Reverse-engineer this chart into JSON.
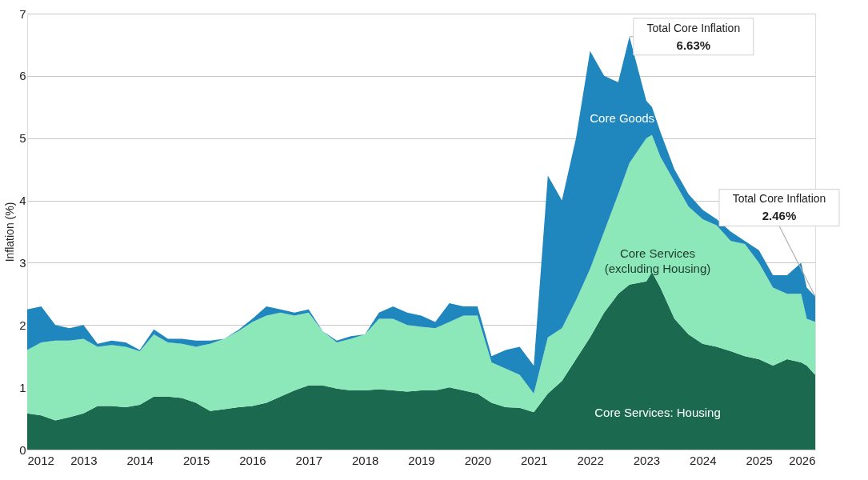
{
  "chart_data": {
    "type": "area",
    "stacked": true,
    "ylabel": "Inflation (%)",
    "x": [
      2012.0,
      2012.25,
      2012.5,
      2012.75,
      2013.0,
      2013.25,
      2013.5,
      2013.75,
      2014.0,
      2014.25,
      2014.5,
      2014.75,
      2015.0,
      2015.25,
      2015.5,
      2015.75,
      2016.0,
      2016.25,
      2016.5,
      2016.75,
      2017.0,
      2017.25,
      2017.5,
      2017.75,
      2018.0,
      2018.25,
      2018.5,
      2018.75,
      2019.0,
      2019.25,
      2019.5,
      2019.75,
      2020.0,
      2020.25,
      2020.5,
      2020.75,
      2021.0,
      2021.25,
      2021.5,
      2021.75,
      2022.0,
      2022.25,
      2022.5,
      2022.7,
      2023.0,
      2023.1,
      2023.25,
      2023.5,
      2023.75,
      2024.0,
      2024.25,
      2024.5,
      2024.75,
      2025.0,
      2025.25,
      2025.5,
      2025.75,
      2025.85,
      2026.0
    ],
    "series": [
      {
        "name": "Core Services: Housing",
        "color": "#1b6a50",
        "values": [
          0.58,
          0.55,
          0.47,
          0.52,
          0.58,
          0.7,
          0.7,
          0.68,
          0.72,
          0.85,
          0.85,
          0.83,
          0.75,
          0.62,
          0.65,
          0.68,
          0.7,
          0.75,
          0.85,
          0.95,
          1.03,
          1.03,
          0.98,
          0.95,
          0.95,
          0.97,
          0.95,
          0.93,
          0.95,
          0.95,
          1.0,
          0.95,
          0.9,
          0.75,
          0.68,
          0.67,
          0.6,
          0.9,
          1.1,
          1.45,
          1.8,
          2.2,
          2.5,
          2.65,
          2.7,
          2.85,
          2.6,
          2.1,
          1.85,
          1.7,
          1.65,
          1.58,
          1.5,
          1.45,
          1.35,
          1.45,
          1.4,
          1.35,
          1.2
        ]
      },
      {
        "name": "Core Services (excluding Housing)",
        "color": "#8ce8b8",
        "values": [
          1.02,
          1.17,
          1.28,
          1.23,
          1.2,
          0.95,
          0.98,
          0.97,
          0.86,
          1.0,
          0.87,
          0.87,
          0.9,
          1.08,
          1.13,
          1.22,
          1.35,
          1.4,
          1.35,
          1.2,
          1.17,
          0.87,
          0.74,
          0.83,
          0.9,
          1.13,
          1.15,
          1.07,
          1.02,
          1.0,
          1.05,
          1.2,
          1.25,
          0.65,
          0.62,
          0.53,
          0.3,
          0.9,
          0.85,
          0.95,
          1.1,
          1.3,
          1.6,
          1.95,
          2.3,
          2.2,
          2.1,
          2.2,
          2.05,
          2.0,
          1.95,
          1.77,
          1.8,
          1.55,
          1.25,
          1.05,
          1.1,
          0.75,
          0.85
        ]
      },
      {
        "name": "Core Goods",
        "color": "#1f87bd",
        "values": [
          0.65,
          0.58,
          0.25,
          0.2,
          0.22,
          0.05,
          0.07,
          0.07,
          0.02,
          0.08,
          0.06,
          0.08,
          0.1,
          0.05,
          0,
          0.02,
          0.05,
          0.15,
          0.05,
          0.05,
          0.05,
          0,
          0.03,
          0.04,
          0,
          0.1,
          0.2,
          0.2,
          0.18,
          0.1,
          0.3,
          0.15,
          0.15,
          0.1,
          0.3,
          0.45,
          0.45,
          2.6,
          2.05,
          2.6,
          3.5,
          2.5,
          1.8,
          2.03,
          0.6,
          0.45,
          0.4,
          0.2,
          0.2,
          0.15,
          0.1,
          0.15,
          0.05,
          0.2,
          0.2,
          0.3,
          0.5,
          0.5,
          0.41
        ]
      }
    ],
    "xlim": [
      2012,
      2026
    ],
    "xticks": [
      2012,
      2013,
      2014,
      2015,
      2016,
      2017,
      2018,
      2019,
      2020,
      2021,
      2022,
      2023,
      2024,
      2025,
      2026
    ],
    "ylim": [
      0,
      7
    ],
    "yticks": [
      0,
      1,
      2,
      3,
      4,
      5,
      6,
      7
    ],
    "grid": "y",
    "legend": false,
    "annotations": [
      {
        "text": "Total Core Inflation 6.63%",
        "x": 2022.7,
        "y": 6.63
      },
      {
        "text": "Total Core Inflation 2.46%",
        "x": 2026.0,
        "y": 2.46
      }
    ]
  }
}
